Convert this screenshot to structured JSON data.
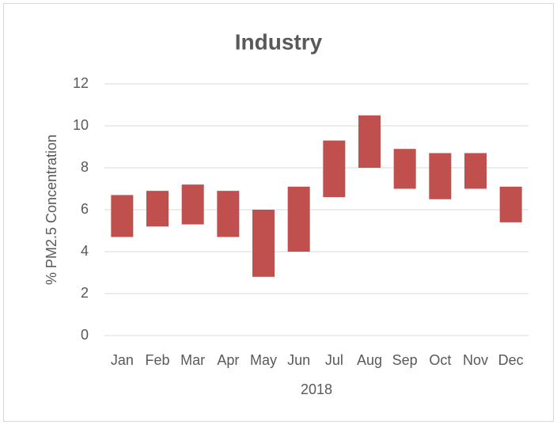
{
  "chart_data": {
    "type": "range_bar",
    "title": "Industry",
    "y_label": "% PM2.5 Concentration",
    "x_label": "2018",
    "categories": [
      "Jan",
      "Feb",
      "Mar",
      "Apr",
      "May",
      "Jun",
      "Jul",
      "Aug",
      "Sep",
      "Oct",
      "Nov",
      "Dec"
    ],
    "low": [
      4.7,
      5.2,
      5.3,
      4.7,
      2.8,
      4.0,
      6.6,
      8.0,
      7.0,
      6.5,
      7.0,
      5.4
    ],
    "high": [
      6.7,
      6.9,
      7.2,
      6.9,
      6.0,
      7.1,
      9.3,
      10.5,
      8.9,
      8.7,
      8.7,
      7.1
    ],
    "color": "#c0504d",
    "ylim": [
      0,
      12
    ],
    "yticks": [
      0,
      2,
      4,
      6,
      8,
      10,
      12
    ],
    "grid": true
  }
}
